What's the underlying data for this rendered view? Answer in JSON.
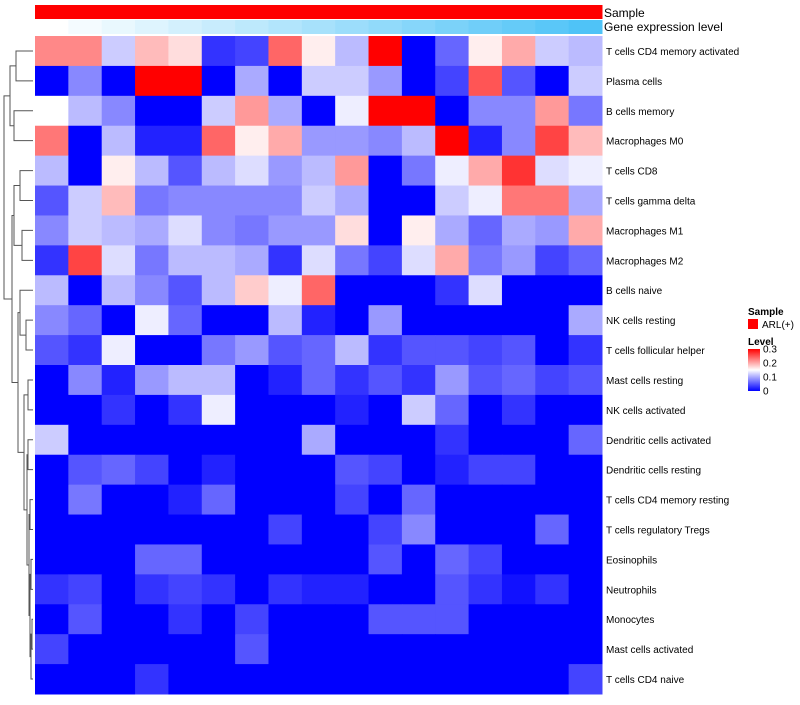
{
  "chart_data": {
    "type": "heatmap",
    "title": "",
    "annotation_bars": [
      {
        "label": "Sample",
        "color": "#ff0000"
      },
      {
        "label": "Gene expression level",
        "gradient": [
          "#ffffff",
          "#4fc3f7"
        ]
      }
    ],
    "rows": [
      "T cells CD4 memory activated",
      "Plasma cells",
      "B cells memory",
      "Macrophages M0",
      "T cells CD8",
      "T cells gamma delta",
      "Macrophages M1",
      "Macrophages M2",
      "B cells naive",
      "NK cells resting",
      "T cells follicular helper",
      "Mast cells resting",
      "NK cells activated",
      "Dendritic cells activated",
      "Dendritic cells resting",
      "T cells CD4 memory resting",
      "T cells regulatory  Tregs",
      "Eosinophils",
      "Neutrophils",
      "Monocytes",
      "Mast cells activated",
      "T cells CD4 naive"
    ],
    "n_columns": 17,
    "values": [
      [
        0.22,
        0.22,
        0.12,
        0.19,
        0.17,
        0.03,
        0.04,
        0.24,
        0.16,
        0.11,
        0.3,
        0.0,
        0.06,
        0.16,
        0.2,
        0.12,
        0.11
      ],
      [
        0.0,
        0.08,
        0.0,
        0.3,
        0.3,
        0.0,
        0.1,
        0.0,
        0.12,
        0.12,
        0.09,
        0.0,
        0.04,
        0.25,
        0.05,
        0.0,
        0.12
      ],
      [
        0.15,
        0.11,
        0.08,
        0.0,
        0.0,
        0.12,
        0.21,
        0.1,
        0.0,
        0.14,
        0.3,
        0.3,
        0.0,
        0.08,
        0.08,
        0.21,
        0.07
      ],
      [
        0.23,
        0.0,
        0.11,
        0.02,
        0.02,
        0.24,
        0.16,
        0.2,
        0.09,
        0.09,
        0.08,
        0.11,
        0.3,
        0.02,
        0.08,
        0.26,
        0.19
      ],
      [
        0.11,
        0.0,
        0.16,
        0.11,
        0.05,
        0.11,
        0.13,
        0.09,
        0.11,
        0.21,
        0.0,
        0.07,
        0.14,
        0.2,
        0.27,
        0.13,
        0.14
      ],
      [
        0.05,
        0.12,
        0.19,
        0.07,
        0.08,
        0.08,
        0.08,
        0.08,
        0.12,
        0.1,
        0.0,
        0.0,
        0.12,
        0.14,
        0.23,
        0.23,
        0.1
      ],
      [
        0.08,
        0.12,
        0.11,
        0.1,
        0.13,
        0.08,
        0.07,
        0.09,
        0.09,
        0.17,
        0.0,
        0.16,
        0.1,
        0.06,
        0.1,
        0.09,
        0.2
      ],
      [
        0.03,
        0.26,
        0.13,
        0.07,
        0.11,
        0.11,
        0.1,
        0.03,
        0.13,
        0.07,
        0.04,
        0.13,
        0.2,
        0.07,
        0.09,
        0.04,
        0.06
      ],
      [
        0.11,
        0.0,
        0.11,
        0.08,
        0.05,
        0.11,
        0.18,
        0.14,
        0.24,
        0.0,
        0.0,
        0.0,
        0.03,
        0.13,
        0.0,
        0.0,
        0.0
      ],
      [
        0.08,
        0.06,
        0.0,
        0.14,
        0.06,
        0.0,
        0.0,
        0.11,
        0.02,
        0.0,
        0.09,
        0.0,
        0.0,
        0.0,
        0.0,
        0.0,
        0.1
      ],
      [
        0.05,
        0.03,
        0.14,
        0.0,
        0.0,
        0.07,
        0.09,
        0.05,
        0.06,
        0.11,
        0.03,
        0.05,
        0.05,
        0.04,
        0.05,
        0.0,
        0.03
      ],
      [
        0.0,
        0.08,
        0.02,
        0.09,
        0.11,
        0.11,
        0.0,
        0.02,
        0.06,
        0.03,
        0.05,
        0.03,
        0.09,
        0.05,
        0.06,
        0.04,
        0.05
      ],
      [
        0.0,
        0.0,
        0.03,
        0.0,
        0.03,
        0.14,
        0.0,
        0.0,
        0.0,
        0.02,
        0.0,
        0.12,
        0.06,
        0.0,
        0.03,
        0.0,
        0.0
      ],
      [
        0.12,
        0.0,
        0.0,
        0.0,
        0.0,
        0.0,
        0.0,
        0.0,
        0.1,
        0.0,
        0.0,
        0.0,
        0.03,
        0.0,
        0.0,
        0.0,
        0.06
      ],
      [
        0.0,
        0.05,
        0.06,
        0.04,
        0.0,
        0.02,
        0.0,
        0.0,
        0.0,
        0.05,
        0.04,
        0.0,
        0.02,
        0.04,
        0.04,
        0.0,
        0.0
      ],
      [
        0.0,
        0.07,
        0.0,
        0.0,
        0.02,
        0.06,
        0.0,
        0.0,
        0.0,
        0.04,
        0.0,
        0.06,
        0.0,
        0.0,
        0.0,
        0.0,
        0.0
      ],
      [
        0.0,
        0.0,
        0.0,
        0.0,
        0.0,
        0.0,
        0.0,
        0.04,
        0.0,
        0.0,
        0.04,
        0.08,
        0.0,
        0.0,
        0.0,
        0.06,
        0.0
      ],
      [
        0.0,
        0.0,
        0.0,
        0.06,
        0.06,
        0.0,
        0.0,
        0.0,
        0.0,
        0.0,
        0.05,
        0.0,
        0.06,
        0.04,
        0.0,
        0.0,
        0.0
      ],
      [
        0.03,
        0.04,
        0.0,
        0.03,
        0.04,
        0.03,
        0.0,
        0.03,
        0.02,
        0.02,
        0.0,
        0.0,
        0.05,
        0.03,
        0.01,
        0.03,
        0.0
      ],
      [
        0.0,
        0.05,
        0.0,
        0.0,
        0.03,
        0.0,
        0.04,
        0.0,
        0.0,
        0.0,
        0.05,
        0.05,
        0.05,
        0.0,
        0.0,
        0.0,
        0.0
      ],
      [
        0.04,
        0.0,
        0.0,
        0.0,
        0.0,
        0.0,
        0.05,
        0.0,
        0.0,
        0.0,
        0.0,
        0.0,
        0.0,
        0.0,
        0.0,
        0.0,
        0.0
      ],
      [
        0.0,
        0.0,
        0.0,
        0.03,
        0.0,
        0.0,
        0.0,
        0.0,
        0.0,
        0.0,
        0.0,
        0.0,
        0.0,
        0.0,
        0.0,
        0.0,
        0.04
      ]
    ],
    "color_scale": {
      "low": "#0000ff",
      "mid": "#ffffff",
      "high": "#ff0000",
      "min": 0,
      "mid_value": 0.15,
      "max": 0.3
    },
    "legend": {
      "sample_title": "Sample",
      "sample_entry": "ARL(+)",
      "sample_color": "#ff0000",
      "level_title": "Level",
      "ticks": [
        "0.3",
        "0.2",
        "0.1",
        "0"
      ],
      "tick_values": [
        0.3,
        0.2,
        0.1,
        0
      ]
    },
    "dendrogram": "row clustering dendrogram on left"
  }
}
